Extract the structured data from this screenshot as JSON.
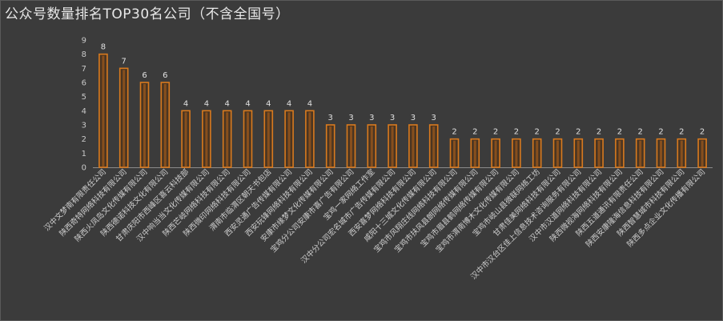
{
  "chart_data": {
    "type": "bar",
    "title": "公众号数量排名TOP30名公司（不含全国号）",
    "ylim": [
      0,
      9
    ],
    "yticks": [
      0,
      1,
      2,
      3,
      4,
      5,
      6,
      7,
      8,
      9
    ],
    "grid": false,
    "legend": "none",
    "bar_color": "#d97a1e",
    "categories": [
      "汉中文梦南有限责任公司",
      "陕西奇特网络科技有限公司",
      "陕西火凤岛文化传媒有限公司",
      "陕西德诺科技文化有限公司",
      "甘肃庆阳市西峰区喜云科技部",
      "汉中响当当文化传媒有限公司",
      "陕西芒岐网络科技有限公司",
      "陕西微印网络科技有限公司",
      "渭南市临渭区朝天书包店",
      "西安灵通广告传媒有限公司",
      "西安玩锋网络科技有限公司",
      "安康市缘梦文化传媒有限公司",
      "宝鸡分公司安康市喜广告有限公司",
      "宝鸡一家网络工作室",
      "汉中分公司宏名城市广告传媒有限公司",
      "西安喜梦网络科技有限公司",
      "咸阳十三城文化传媒有限公司",
      "宝鸡市风翔庄线网络科技有限公司",
      "宝鸡市扶风县朗网络传媒有限公司",
      "宝鸡市眉县鹤网络传媒有限公司",
      "宝鸡市渭南博木文化传媒有限公司",
      "宝鸡市岐山县微联网络工坊",
      "甘肃佳美网络科技有限公司",
      "汉中市汉台区佳上信息技术咨询服务有限公司",
      "汉中市汉道网络科技有限公司",
      "陕西微视海网络科技有限公司",
      "陕西五道通讯有限责任公司",
      "陕西安康隆海信息科技有限公司",
      "陕西智慧城市科技有限公司",
      "陕西多点企业文化传播有限公司"
    ],
    "values": [
      8,
      7,
      6,
      6,
      4,
      4,
      4,
      4,
      4,
      4,
      4,
      3,
      3,
      3,
      3,
      3,
      3,
      2,
      2,
      2,
      2,
      2,
      2,
      2,
      2,
      2,
      2,
      2,
      2,
      2
    ]
  }
}
